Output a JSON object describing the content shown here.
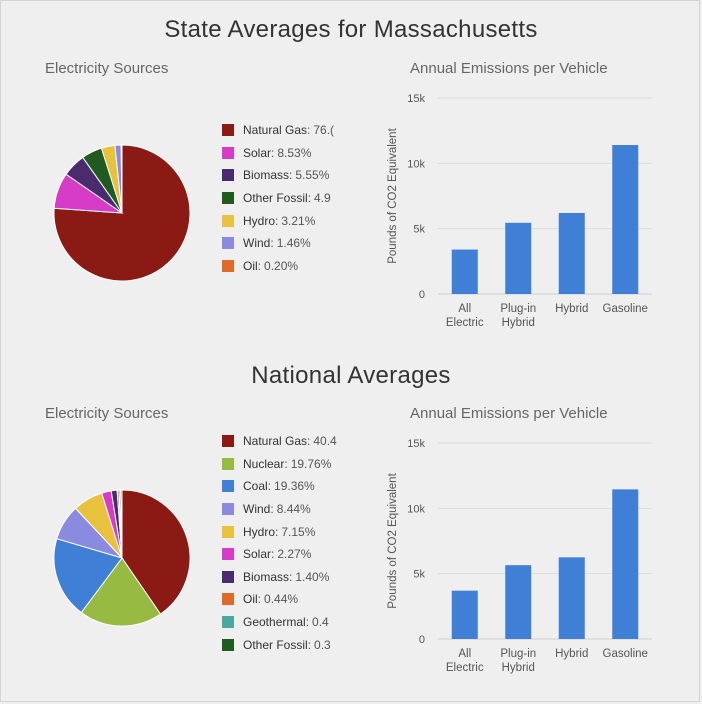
{
  "state": {
    "title": "State Averages for Massachusetts",
    "sources_title": "Electricity Sources",
    "emissions_title": "Annual Emissions per Vehicle"
  },
  "national": {
    "title": "National Averages",
    "sources_title": "Electricity Sources",
    "emissions_title": "Annual Emissions per Vehicle"
  },
  "chart_data": [
    {
      "type": "pie",
      "title": "Electricity Sources",
      "series": [
        {
          "name": "Natural Gas",
          "label": "76.(",
          "value": 76.0,
          "color": "#8b1a14"
        },
        {
          "name": "Solar",
          "label": "8.53%",
          "value": 8.53,
          "color": "#d63cc8"
        },
        {
          "name": "Biomass",
          "label": "5.55%",
          "value": 5.55,
          "color": "#4a2c6e"
        },
        {
          "name": "Other Fossil",
          "label": "4.9",
          "value": 4.9,
          "color": "#1f5a1f"
        },
        {
          "name": "Hydro",
          "label": "3.21%",
          "value": 3.21,
          "color": "#e8c23e"
        },
        {
          "name": "Wind",
          "label": "1.46%",
          "value": 1.46,
          "color": "#8a8ae0"
        },
        {
          "name": "Oil",
          "label": "0.20%",
          "value": 0.2,
          "color": "#e06a2a"
        }
      ]
    },
    {
      "type": "bar",
      "title": "Annual Emissions per Vehicle",
      "categories": [
        "All Electric",
        "Plug-in Hybrid",
        "Hybrid",
        "Gasoline"
      ],
      "values": [
        3400,
        5450,
        6200,
        11400
      ],
      "ylabel": "Pounds of CO2 Equivalent",
      "ylim": [
        0,
        15000
      ],
      "yticks": [
        0,
        5000,
        10000,
        15000
      ],
      "ytick_labels": [
        "0",
        "5k",
        "10k",
        "15k"
      ],
      "grid": true,
      "bar_color": "#3f7fd6"
    },
    {
      "type": "pie",
      "title": "Electricity Sources",
      "series": [
        {
          "name": "Natural Gas",
          "label": "40.4",
          "value": 40.4,
          "color": "#8b1a14"
        },
        {
          "name": "Nuclear",
          "label": "19.76%",
          "value": 19.76,
          "color": "#97ba42"
        },
        {
          "name": "Coal",
          "label": "19.36%",
          "value": 19.36,
          "color": "#3f7fd6"
        },
        {
          "name": "Wind",
          "label": "8.44%",
          "value": 8.44,
          "color": "#8a8ae0"
        },
        {
          "name": "Hydro",
          "label": "7.15%",
          "value": 7.15,
          "color": "#e8c23e"
        },
        {
          "name": "Solar",
          "label": "2.27%",
          "value": 2.27,
          "color": "#d63cc8"
        },
        {
          "name": "Biomass",
          "label": "1.40%",
          "value": 1.4,
          "color": "#4a2c6e"
        },
        {
          "name": "Oil",
          "label": "0.44%",
          "value": 0.44,
          "color": "#e06a2a"
        },
        {
          "name": "Geothermal",
          "label": "0.4",
          "value": 0.4,
          "color": "#4aa8a0"
        },
        {
          "name": "Other Fossil",
          "label": "0.3",
          "value": 0.3,
          "color": "#1f5a1f"
        }
      ]
    },
    {
      "type": "bar",
      "title": "Annual Emissions per Vehicle",
      "categories": [
        "All Electric",
        "Plug-in Hybrid",
        "Hybrid",
        "Gasoline"
      ],
      "values": [
        3700,
        5650,
        6250,
        11450
      ],
      "ylabel": "Pounds of CO2 Equivalent",
      "ylim": [
        0,
        15000
      ],
      "yticks": [
        0,
        5000,
        10000,
        15000
      ],
      "ytick_labels": [
        "0",
        "5k",
        "10k",
        "15k"
      ],
      "grid": true,
      "bar_color": "#3f7fd6"
    }
  ]
}
